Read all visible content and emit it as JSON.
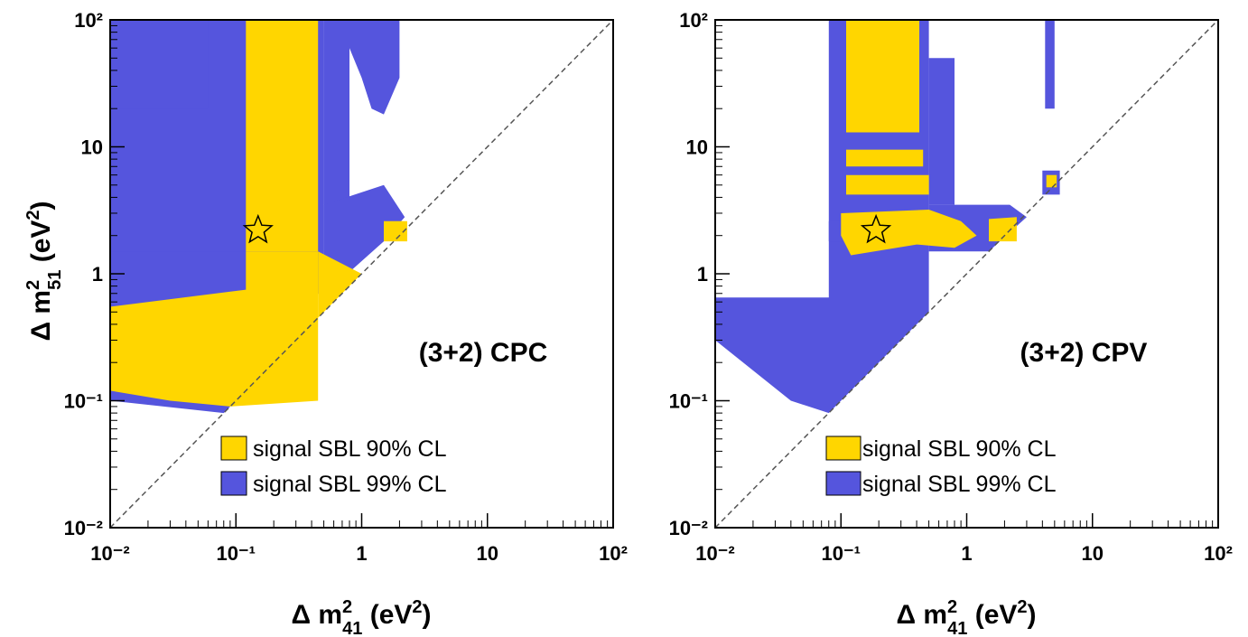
{
  "colors": {
    "cl90": "#ffd600",
    "cl99": "#5555dd",
    "diagonal": "#555555",
    "star_fill": "#ffd600",
    "star_stroke": "#000000"
  },
  "chart_data": [
    {
      "type": "scatter",
      "annotation": "(3+2) CPC",
      "xlabel": "Δ m²₄₁ (eV²)",
      "ylabel": "Δ m²₅₁ (eV²)",
      "xlim": [
        0.01,
        100
      ],
      "ylim": [
        0.01,
        100
      ],
      "xscale": "log",
      "yscale": "log",
      "x_tick_labels": [
        "10⁻²",
        "10⁻¹",
        "1",
        "10",
        "10²"
      ],
      "y_tick_labels": [
        "10⁻²",
        "10⁻¹",
        "1",
        "10",
        "10²"
      ],
      "legend_position": "bottom-center",
      "series": [
        {
          "name": "signal SBL 90% CL",
          "color": "#ffd600"
        },
        {
          "name": "signal SBL 99% CL",
          "color": "#5555dd"
        }
      ],
      "best_fit": {
        "x": 0.15,
        "y": 2.2,
        "marker": "star"
      },
      "diagonal": "dashed y=x",
      "regions": {
        "cl99": [
          [
            [
              0.01,
              100
            ],
            [
              0.5,
              100
            ],
            [
              0.5,
              0.7
            ],
            [
              0.06,
              0.6
            ],
            [
              0.01,
              0.55
            ]
          ],
          [
            [
              0.01,
              100
            ],
            [
              0.06,
              100
            ],
            [
              0.06,
              20
            ],
            [
              0.01,
              20
            ]
          ],
          [
            [
              0.01,
              1.5
            ],
            [
              0.12,
              1.5
            ],
            [
              0.12,
              1.0
            ],
            [
              0.01,
              1.0
            ]
          ],
          [
            [
              0.5,
              100
            ],
            [
              0.8,
              100
            ],
            [
              0.8,
              3.5
            ],
            [
              0.5,
              3.5
            ]
          ],
          [
            [
              0.2,
              2.5
            ],
            [
              0.35,
              2.5
            ],
            [
              0.35,
              1.2
            ],
            [
              0.2,
              1.2
            ]
          ],
          [
            [
              0.5,
              3.5
            ],
            [
              1.5,
              5
            ],
            [
              2.2,
              2.8
            ],
            [
              1.5,
              1.8
            ],
            [
              0.6,
              0.8
            ],
            [
              0.5,
              0.8
            ]
          ],
          [
            [
              0.8,
              100
            ],
            [
              2.0,
              100
            ],
            [
              2.0,
              35
            ],
            [
              1.5,
              18
            ],
            [
              1.2,
              20
            ],
            [
              1.0,
              35
            ],
            [
              0.8,
              60
            ]
          ],
          [
            [
              0.01,
              0.13
            ],
            [
              0.04,
              0.13
            ],
            [
              0.1,
              0.1
            ],
            [
              0.08,
              0.08
            ],
            [
              0.01,
              0.1
            ]
          ]
        ],
        "cl90": [
          [
            [
              0.12,
              100
            ],
            [
              0.45,
              100
            ],
            [
              0.45,
              1.5
            ],
            [
              0.12,
              1.5
            ]
          ],
          [
            [
              0.01,
              0.55
            ],
            [
              0.12,
              0.75
            ],
            [
              0.12,
              1.5
            ],
            [
              0.45,
              1.5
            ],
            [
              0.45,
              0.1
            ],
            [
              0.09,
              0.09
            ],
            [
              0.03,
              0.1
            ],
            [
              0.01,
              0.12
            ]
          ],
          [
            [
              0.45,
              1.5
            ],
            [
              1.0,
              1.0
            ],
            [
              1.5,
              1.5
            ],
            [
              0.45,
              0.45
            ]
          ],
          [
            [
              1.5,
              2.6
            ],
            [
              2.3,
              2.6
            ],
            [
              2.3,
              1.8
            ],
            [
              1.5,
              1.8
            ]
          ]
        ]
      }
    },
    {
      "type": "scatter",
      "annotation": "(3+2) CPV",
      "xlabel": "Δ m²₄₁ (eV²)",
      "ylabel": "",
      "xlim": [
        0.01,
        100
      ],
      "ylim": [
        0.01,
        100
      ],
      "xscale": "log",
      "yscale": "log",
      "x_tick_labels": [
        "10⁻²",
        "10⁻¹",
        "1",
        "10",
        "10²"
      ],
      "y_tick_labels": [
        "10⁻²",
        "10⁻¹",
        "1",
        "10",
        "10²"
      ],
      "legend_position": "bottom-center",
      "series": [
        {
          "name": "signal SBL 90% CL",
          "color": "#ffd600"
        },
        {
          "name": "signal SBL 99% CL",
          "color": "#5555dd"
        }
      ],
      "best_fit": {
        "x": 0.19,
        "y": 2.2,
        "marker": "star"
      },
      "diagonal": "dashed y=x",
      "regions": {
        "cl99": [
          [
            [
              0.08,
              100
            ],
            [
              0.5,
              100
            ],
            [
              0.5,
              1.0
            ],
            [
              0.08,
              1.0
            ]
          ],
          [
            [
              0.01,
              0.65
            ],
            [
              0.08,
              0.65
            ],
            [
              0.08,
              1.0
            ],
            [
              0.5,
              1.0
            ],
            [
              0.5,
              0.5
            ],
            [
              0.08,
              0.08
            ],
            [
              0.04,
              0.1
            ],
            [
              0.01,
              0.3
            ]
          ],
          [
            [
              0.5,
              50
            ],
            [
              0.8,
              50
            ],
            [
              0.8,
              3.5
            ],
            [
              0.5,
              3.5
            ]
          ],
          [
            [
              0.5,
              3.5
            ],
            [
              2.2,
              3.5
            ],
            [
              3.0,
              2.8
            ],
            [
              1.5,
              1.5
            ],
            [
              0.5,
              1.5
            ]
          ],
          [
            [
              4.2,
              100
            ],
            [
              5.0,
              100
            ],
            [
              5.0,
              20
            ],
            [
              4.2,
              20
            ]
          ],
          [
            [
              4.0,
              6.5
            ],
            [
              5.5,
              6.5
            ],
            [
              5.5,
              4.2
            ],
            [
              4.0,
              4.2
            ]
          ],
          [
            [
              0.08,
              2.6
            ],
            [
              0.11,
              2.6
            ],
            [
              0.11,
              1.8
            ],
            [
              0.08,
              1.8
            ]
          ]
        ],
        "cl90": [
          [
            [
              0.11,
              100
            ],
            [
              0.42,
              100
            ],
            [
              0.42,
              13
            ],
            [
              0.11,
              13
            ]
          ],
          [
            [
              0.11,
              9.5
            ],
            [
              0.45,
              9.5
            ],
            [
              0.45,
              7.0
            ],
            [
              0.11,
              7.0
            ]
          ],
          [
            [
              0.11,
              6.0
            ],
            [
              0.5,
              6.0
            ],
            [
              0.5,
              4.2
            ],
            [
              0.11,
              4.2
            ]
          ],
          [
            [
              0.1,
              3.0
            ],
            [
              0.5,
              3.2
            ],
            [
              0.9,
              2.6
            ],
            [
              1.2,
              2.0
            ],
            [
              0.8,
              1.6
            ],
            [
              0.4,
              1.7
            ],
            [
              0.12,
              1.4
            ],
            [
              0.1,
              2.0
            ]
          ],
          [
            [
              1.5,
              2.7
            ],
            [
              2.5,
              2.8
            ],
            [
              2.5,
              1.8
            ],
            [
              1.5,
              1.8
            ]
          ],
          [
            [
              4.3,
              6.0
            ],
            [
              5.2,
              6.0
            ],
            [
              5.2,
              4.8
            ],
            [
              4.3,
              4.8
            ]
          ]
        ]
      }
    }
  ]
}
